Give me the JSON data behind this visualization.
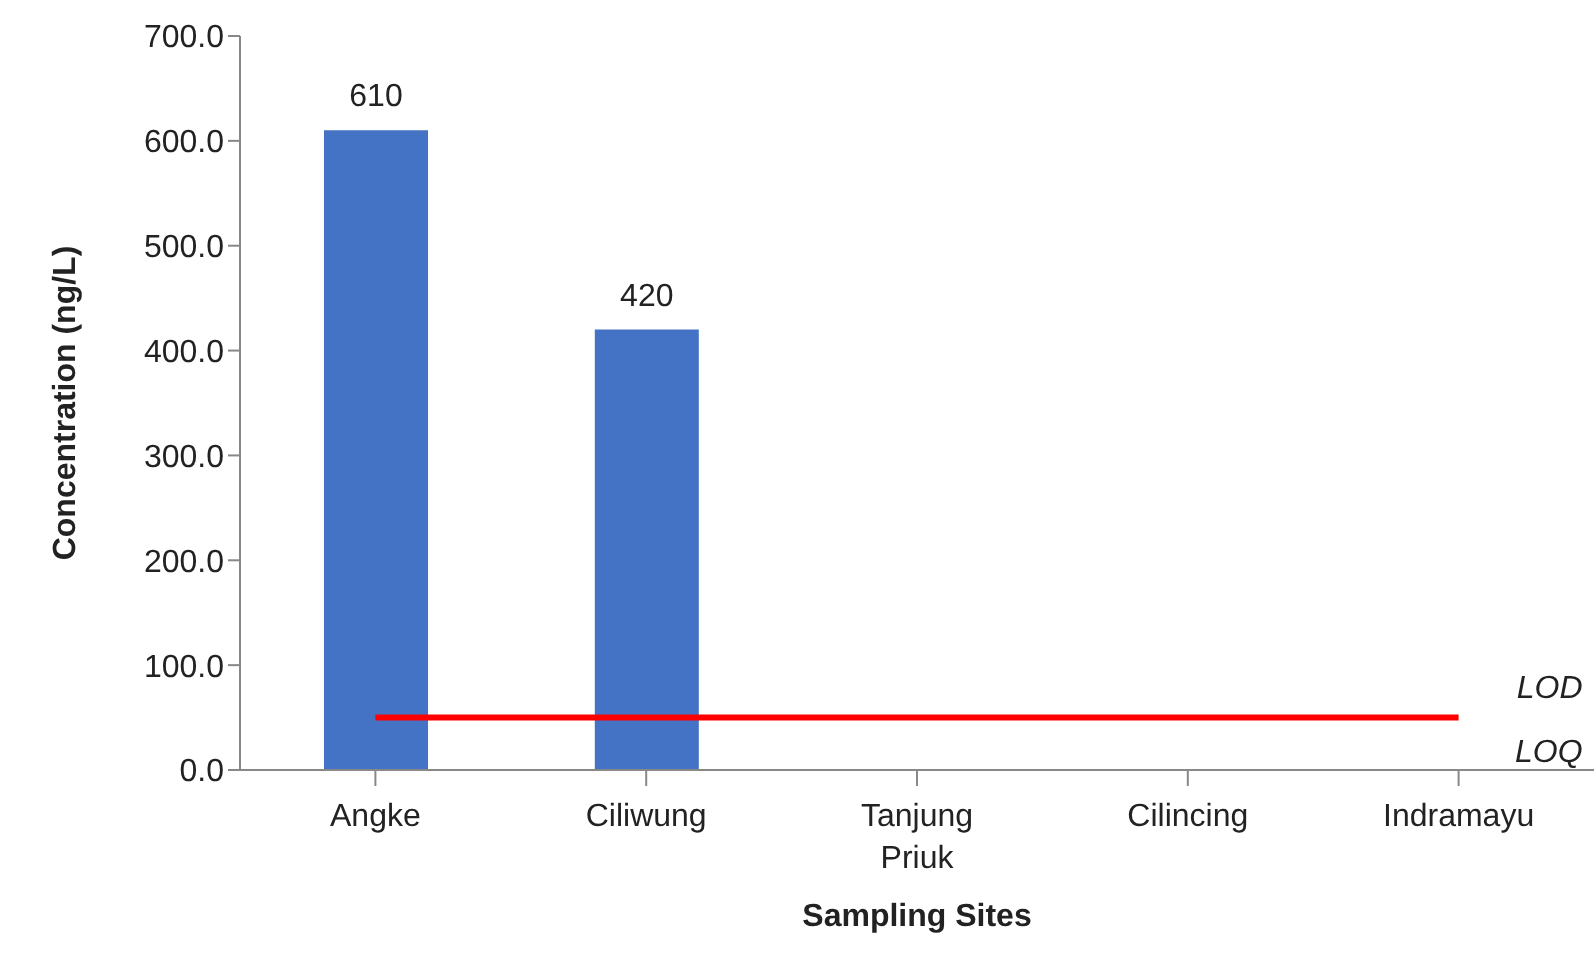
{
  "chart_data": {
    "type": "bar",
    "xlabel": "Sampling Sites",
    "ylabel": "Concentration (ng/L)",
    "categories": [
      "Angke",
      "Ciliwung",
      "Tanjung Priuk",
      "Cilincing",
      "Indramayu"
    ],
    "series": [
      {
        "color": "#4472c4",
        "values": [
          610,
          420,
          null,
          null,
          null
        ],
        "value_labels": [
          "610",
          "420",
          null,
          null,
          null
        ]
      },
      {
        "type": "line",
        "color": "#ff0000",
        "values": [
          50,
          50,
          50,
          50,
          50
        ],
        "marker": "none"
      }
    ],
    "annotations": [
      {
        "text": "LOD",
        "x": "Indramayu",
        "y": 50
      },
      {
        "text": "LOQ",
        "x": "Indramayu",
        "y": 50
      }
    ],
    "ylim": [
      0,
      700
    ],
    "yticks": [
      {
        "value": 0,
        "label": "0.0"
      },
      {
        "value": 100,
        "label": "100.0"
      },
      {
        "value": 200,
        "label": "200.0"
      },
      {
        "value": 300,
        "label": "300.0"
      },
      {
        "value": 400,
        "label": "400.0"
      },
      {
        "value": 500,
        "label": "500.0"
      },
      {
        "value": 600,
        "label": "600.0"
      },
      {
        "value": 700,
        "label": "700.0"
      }
    ],
    "grid": false,
    "legend": false
  }
}
